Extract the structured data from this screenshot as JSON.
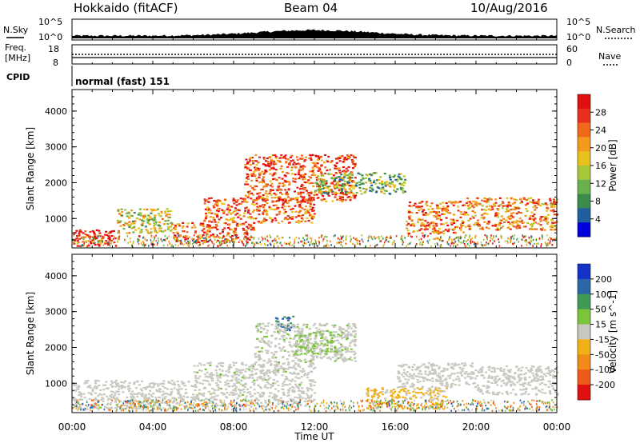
{
  "header": {
    "station": "Hokkaido (fitACF)",
    "beam": "Beam 04",
    "date": "10/Aug/2016"
  },
  "noise_panel": {
    "left_label": "N.Sky",
    "right_label": "N.Search",
    "tick_top": "10^5",
    "tick_bottom": "10^0"
  },
  "freq_panel": {
    "left_label_1": "Freq.",
    "left_label_2": "[MHz]",
    "right_label": "Nave",
    "left_ticks": [
      "18",
      "8"
    ],
    "right_ticks": [
      "60",
      "0"
    ]
  },
  "cpid_panel": {
    "label": "CPID",
    "mode": "normal (fast) 151"
  },
  "axes": {
    "ylabel": "Slant Range [km]",
    "yticks": [
      "4000",
      "3000",
      "2000",
      "1000"
    ],
    "xlabel": "Time UT",
    "xticks": [
      "00:00",
      "04:00",
      "08:00",
      "12:00",
      "16:00",
      "20:00",
      "00:00"
    ]
  },
  "colorbars": {
    "power": {
      "label": "Power [dB]",
      "ticks": [
        "28",
        "24",
        "20",
        "16",
        "12",
        "8",
        "4"
      ],
      "colors": [
        "#0000dd",
        "#1f5fa0",
        "#3a8c4a",
        "#6ab04c",
        "#a4c83a",
        "#e8c21c",
        "#f39a1e",
        "#ee6a1a",
        "#e8301c",
        "#e01010"
      ]
    },
    "velocity": {
      "label": "Velocity [m s^-1]",
      "ticks": [
        "200",
        "100",
        "50",
        "15",
        "-15",
        "-50",
        "-100",
        "-200"
      ],
      "colors": [
        "#1432c8",
        "#2a66a8",
        "#3f9a55",
        "#7cc53a",
        "#c8c8c0",
        "#f2b018",
        "#f08a18",
        "#ee5a18",
        "#e01010"
      ]
    }
  },
  "chart_data": [
    {
      "type": "heatmap",
      "title": "Power",
      "xlabel": "Time UT",
      "ylabel": "Slant Range [km]",
      "xlim": [
        "00:00",
        "24:00"
      ],
      "ylim": [
        180,
        4600
      ],
      "zlabel": "Power [dB]",
      "zlim": [
        0,
        32
      ],
      "regions": [
        {
          "t": [
            0.0,
            2.2
          ],
          "range": [
            250,
            700
          ],
          "power": 30
        },
        {
          "t": [
            2.2,
            5.0
          ],
          "range": [
            600,
            1300
          ],
          "power": 16
        },
        {
          "t": [
            5.0,
            9.0
          ],
          "range": [
            350,
            900
          ],
          "power": 26
        },
        {
          "t": [
            6.5,
            12.0
          ],
          "range": [
            900,
            1600
          ],
          "power": 24
        },
        {
          "t": [
            8.5,
            14.0
          ],
          "range": [
            1500,
            2800
          ],
          "power": 26
        },
        {
          "t": [
            12.0,
            16.5
          ],
          "range": [
            1700,
            2300
          ],
          "power": 12
        },
        {
          "t": [
            16.5,
            19.5
          ],
          "range": [
            600,
            1500
          ],
          "power": 24
        },
        {
          "t": [
            19.5,
            24.0
          ],
          "range": [
            700,
            1600
          ],
          "power": 22
        }
      ]
    },
    {
      "type": "heatmap",
      "title": "Velocity",
      "xlabel": "Time UT",
      "ylabel": "Slant Range [km]",
      "xlim": [
        "00:00",
        "24:00"
      ],
      "ylim": [
        180,
        4600
      ],
      "zlabel": "Velocity [m s^-1]",
      "zlim": [
        -250,
        250
      ],
      "regions": [
        {
          "t": [
            0.0,
            6.0
          ],
          "range": [
            300,
            1100
          ],
          "velocity": 0
        },
        {
          "t": [
            6.0,
            12.0
          ],
          "range": [
            350,
            1600
          ],
          "velocity": 5
        },
        {
          "t": [
            10.0,
            11.0
          ],
          "range": [
            2500,
            2900
          ],
          "velocity": 150
        },
        {
          "t": [
            9.0,
            14.0
          ],
          "range": [
            1600,
            2700
          ],
          "velocity": 10
        },
        {
          "t": [
            11.0,
            13.5
          ],
          "range": [
            1800,
            2500
          ],
          "velocity": 30
        },
        {
          "t": [
            14.5,
            18.5
          ],
          "range": [
            300,
            900
          ],
          "velocity": -40
        },
        {
          "t": [
            16.0,
            20.0
          ],
          "range": [
            900,
            1600
          ],
          "velocity": 0
        },
        {
          "t": [
            20.0,
            24.0
          ],
          "range": [
            700,
            1500
          ],
          "velocity": 0
        }
      ]
    }
  ]
}
